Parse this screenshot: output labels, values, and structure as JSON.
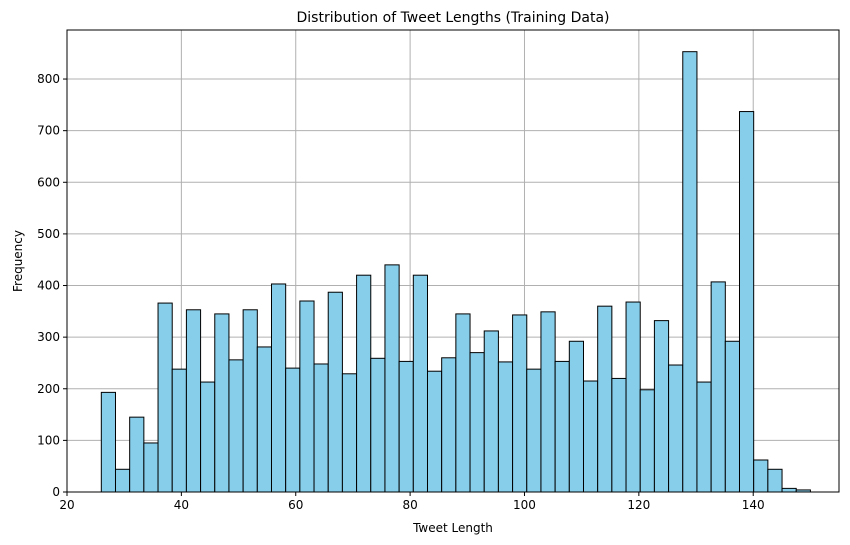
{
  "chart_data": {
    "type": "bar",
    "title": "Distribution of Tweet Lengths (Training Data)",
    "xlabel": "Tweet Length",
    "ylabel": "Frequency",
    "xlim": [
      20,
      155
    ],
    "ylim": [
      0,
      895
    ],
    "grid": true,
    "bar_color": "#87ceeb",
    "edge_color": "#000000",
    "grid_color": "#b0b0b0",
    "x_ticks": [
      "20",
      "40",
      "60",
      "80",
      "100",
      "120",
      "140"
    ],
    "y_ticks": [
      "0",
      "100",
      "200",
      "300",
      "400",
      "500",
      "600",
      "700",
      "800"
    ],
    "bin_edges": [
      26,
      28.48,
      30.96,
      33.44,
      35.92,
      38.4,
      40.88,
      43.36,
      45.84,
      48.32,
      50.8,
      53.28,
      55.76,
      58.24,
      60.72,
      63.2,
      65.68,
      68.16,
      70.64,
      73.12,
      75.6,
      78.08,
      80.56,
      83.04,
      85.52,
      88,
      90.48,
      92.96,
      95.44,
      97.92,
      100.4,
      102.88,
      105.36,
      107.84,
      110.32,
      112.8,
      115.28,
      117.76,
      120.24,
      122.72,
      125.2,
      127.68,
      130.16,
      132.64,
      135.12,
      137.6,
      140.08,
      142.56,
      145.04,
      147.52,
      150
    ],
    "counts": [
      193,
      44,
      145,
      95,
      366,
      238,
      353,
      213,
      345,
      256,
      353,
      281,
      403,
      240,
      370,
      248,
      387,
      229,
      420,
      259,
      440,
      253,
      420,
      234,
      260,
      345,
      270,
      312,
      252,
      343,
      238,
      349,
      253,
      292,
      215,
      360,
      220,
      368,
      198,
      332,
      246,
      853,
      213,
      407,
      292,
      737,
      62,
      44,
      7,
      4
    ]
  }
}
